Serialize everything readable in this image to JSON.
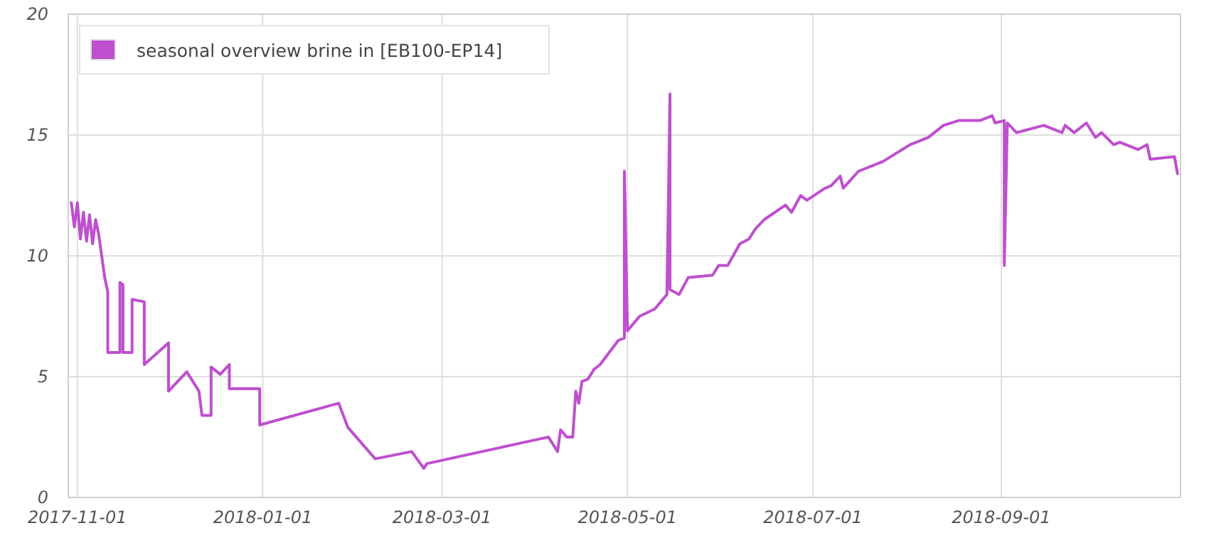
{
  "chart_data": {
    "type": "line",
    "grid": true,
    "legend": "top left",
    "marker": "none",
    "line_style": "solid",
    "xlim": [
      "2017-10-29",
      "2018-10-30"
    ],
    "xticks": [
      "2017-11-01",
      "2018-01-01",
      "2018-03-01",
      "2018-05-01",
      "2018-07-01",
      "2018-09-01"
    ],
    "ylim": [
      0,
      20
    ],
    "yticks": [
      0,
      5,
      10,
      15,
      20
    ],
    "x": [
      "2017-10-30",
      "2017-10-31",
      "2017-11-01",
      "2017-11-02",
      "2017-11-03",
      "2017-11-04",
      "2017-11-05",
      "2017-11-06",
      "2017-11-07",
      "2017-11-08",
      "2017-11-09",
      "2017-11-10",
      "2017-11-11",
      "2017-11-11",
      "2017-11-15",
      "2017-11-15",
      "2017-11-16",
      "2017-11-16",
      "2017-11-19",
      "2017-11-19",
      "2017-11-23",
      "2017-11-23",
      "2017-12-01",
      "2017-12-01",
      "2017-12-07",
      "2017-12-11",
      "2017-12-12",
      "2017-12-15",
      "2017-12-15",
      "2017-12-18",
      "2017-12-21",
      "2017-12-21",
      "2017-12-31",
      "2017-12-31",
      "2018-01-26",
      "2018-01-29",
      "2018-02-07",
      "2018-02-19",
      "2018-02-23",
      "2018-02-24",
      "2018-04-05",
      "2018-04-08",
      "2018-04-09",
      "2018-04-11",
      "2018-04-13",
      "2018-04-14",
      "2018-04-15",
      "2018-04-16",
      "2018-04-18",
      "2018-04-20",
      "2018-04-22",
      "2018-04-25",
      "2018-04-28",
      "2018-04-30",
      "2018-04-30",
      "2018-05-01",
      "2018-05-05",
      "2018-05-10",
      "2018-05-14",
      "2018-05-15",
      "2018-05-15",
      "2018-05-18",
      "2018-05-21",
      "2018-05-29",
      "2018-05-31",
      "2018-06-03",
      "2018-06-07",
      "2018-06-10",
      "2018-06-12",
      "2018-06-15",
      "2018-06-22",
      "2018-06-24",
      "2018-06-27",
      "2018-06-29",
      "2018-07-05",
      "2018-07-07",
      "2018-07-10",
      "2018-07-11",
      "2018-07-16",
      "2018-07-24",
      "2018-08-02",
      "2018-08-08",
      "2018-08-13",
      "2018-08-18",
      "2018-08-25",
      "2018-08-29",
      "2018-08-30",
      "2018-09-02",
      "2018-09-02",
      "2018-09-03",
      "2018-09-06",
      "2018-09-09",
      "2018-09-15",
      "2018-09-21",
      "2018-09-22",
      "2018-09-25",
      "2018-09-29",
      "2018-10-02",
      "2018-10-04",
      "2018-10-08",
      "2018-10-10",
      "2018-10-16",
      "2018-10-19",
      "2018-10-20",
      "2018-10-28",
      "2018-10-29"
    ],
    "series": [
      {
        "name": "seasonal overview brine in [EB100-EP14]",
        "color": "#bf4fcf",
        "values": [
          12.2,
          11.2,
          12.2,
          10.7,
          11.8,
          10.6,
          11.7,
          10.5,
          11.5,
          10.9,
          10.0,
          9.1,
          8.5,
          6.0,
          6.0,
          8.9,
          8.8,
          6.0,
          6.0,
          8.2,
          8.1,
          5.5,
          6.4,
          4.4,
          5.2,
          4.4,
          3.4,
          3.4,
          5.4,
          5.1,
          5.5,
          4.5,
          4.5,
          3.0,
          3.9,
          2.9,
          1.6,
          1.9,
          1.2,
          1.4,
          2.5,
          1.9,
          2.8,
          2.5,
          2.5,
          4.4,
          3.9,
          4.8,
          4.9,
          5.3,
          5.5,
          6.0,
          6.5,
          6.6,
          13.5,
          6.9,
          7.5,
          7.8,
          8.4,
          16.7,
          8.6,
          8.4,
          9.1,
          9.2,
          9.6,
          9.6,
          10.5,
          10.7,
          11.1,
          11.5,
          12.1,
          11.8,
          12.5,
          12.3,
          12.8,
          12.9,
          13.3,
          12.8,
          13.5,
          13.9,
          14.6,
          14.9,
          15.4,
          15.6,
          15.6,
          15.8,
          15.5,
          15.6,
          9.6,
          15.5,
          15.1,
          15.2,
          15.4,
          15.1,
          15.4,
          15.1,
          15.5,
          14.9,
          15.1,
          14.6,
          14.7,
          14.4,
          14.6,
          14.0,
          14.1,
          13.4
        ]
      }
    ]
  }
}
